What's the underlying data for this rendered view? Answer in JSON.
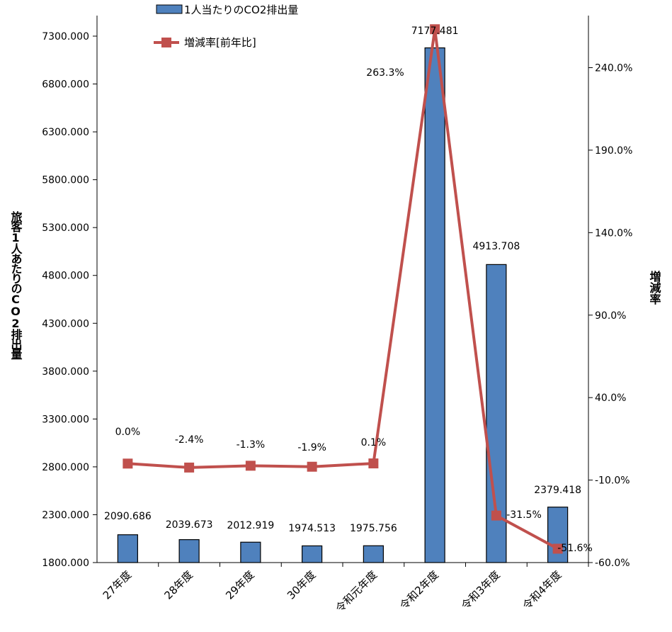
{
  "chart_data": {
    "type": "bar",
    "categories": [
      "27年度",
      "28年度",
      "29年度",
      "30年度",
      "令和元年度",
      "令和2年度",
      "令和3年度",
      "令和4年度"
    ],
    "series": [
      {
        "name": "1人当たりのCO2排出量",
        "type": "bar",
        "axis": "left",
        "values": [
          2090.686,
          2039.673,
          2012.919,
          1974.513,
          1975.756,
          7177.481,
          4913.708,
          2379.418
        ],
        "labels": [
          "2090.686",
          "2039.673",
          "2012.919",
          "1974.513",
          "1975.756",
          "7177.481",
          "4913.708",
          "2379.418"
        ],
        "color": "#4f81bd"
      },
      {
        "name": "増減率[前年比]",
        "type": "line",
        "axis": "right",
        "values": [
          0.0,
          -2.4,
          -1.3,
          -1.9,
          0.1,
          263.3,
          -31.5,
          -51.6
        ],
        "labels": [
          "0.0%",
          "-2.4%",
          "-1.3%",
          "-1.9%",
          "0.1%",
          "263.3%",
          "-31.5%",
          "-51.6%"
        ],
        "color": "#c0504d"
      }
    ],
    "y_left": {
      "label": "旅客1人あたりのCO2排出量",
      "ylim": [
        1800,
        7300
      ],
      "ticks": [
        "1800.000",
        "2300.000",
        "2800.000",
        "3300.000",
        "3800.000",
        "4300.000",
        "4800.000",
        "5300.000",
        "5800.000",
        "6300.000",
        "6800.000",
        "7300.000"
      ]
    },
    "y_right": {
      "label": "増減率",
      "ylim": [
        -60,
        240
      ],
      "ticks": [
        "-60.0%",
        "-10.0%",
        "40.0%",
        "90.0%",
        "140.0%",
        "190.0%",
        "240.0%"
      ]
    },
    "legend_position": "top-left",
    "grid": false
  }
}
